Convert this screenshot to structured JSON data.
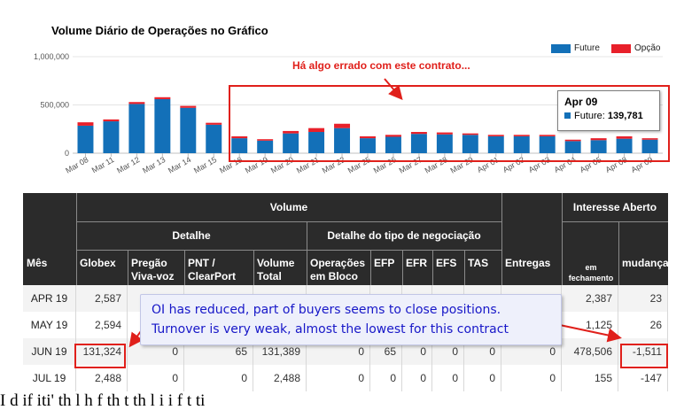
{
  "chart_data": {
    "type": "bar",
    "title": "Volume Diário de Operações no Gráfico",
    "categories": [
      "Mar 08",
      "Mar 11",
      "Mar 12",
      "Mar 13",
      "Mar 14",
      "Mar 15",
      "Mar 18",
      "Mar 19",
      "Mar 20",
      "Mar 21",
      "Mar 22",
      "Mar 25",
      "Mar 26",
      "Mar 27",
      "Mar 28",
      "Mar 29",
      "Apr 01",
      "Apr 02",
      "Apr 03",
      "Apr 04",
      "Apr 05",
      "Apr 08",
      "Apr 09"
    ],
    "series": [
      {
        "name": "Future",
        "color": "#1370b8",
        "values": [
          285000,
          330000,
          510000,
          560000,
          470000,
          295000,
          155000,
          130000,
          205000,
          220000,
          260000,
          155000,
          170000,
          200000,
          195000,
          190000,
          175000,
          175000,
          175000,
          125000,
          135000,
          150000,
          139781
        ]
      },
      {
        "name": "Opção",
        "color": "#e8202a",
        "values": [
          35000,
          20000,
          20000,
          20000,
          20000,
          20000,
          20000,
          15000,
          25000,
          40000,
          45000,
          20000,
          20000,
          20000,
          20000,
          15000,
          15000,
          15000,
          15000,
          15000,
          20000,
          25000,
          15000
        ]
      }
    ],
    "yticks": [
      "0",
      "500,000",
      "1,000,000"
    ],
    "ylim": [
      0,
      1000000
    ],
    "legend": "top-right",
    "annotation": "Há algo errado com este contrato...",
    "tooltip": {
      "date": "Apr 09",
      "series": "Future",
      "value": "139,781"
    }
  },
  "table": {
    "volume": "Volume",
    "detalhe": "Detalhe",
    "detalhe_tipo": "Detalhe do tipo de negociação",
    "interesse": "Interesse Aberto",
    "cols": [
      "Mês",
      "Globex",
      "Pregão\nViva-voz",
      "PNT /\nClearPort",
      "Volume\nTotal",
      "Operações\nem Bloco",
      "EFP",
      "EFR",
      "EFS",
      "TAS",
      "Entregas",
      "em\nfechamento",
      "mudança"
    ],
    "rows": [
      [
        "APR 19",
        "2,587",
        "",
        "",
        "",
        "",
        "",
        "",
        "",
        "",
        "",
        "2,387",
        "23"
      ],
      [
        "MAY 19",
        "2,594",
        "",
        "",
        "",
        "",
        "",
        "",
        "",
        "",
        "",
        "1,125",
        "26"
      ],
      [
        "JUN 19",
        "131,324",
        "0",
        "65",
        "131,389",
        "0",
        "65",
        "0",
        "0",
        "0",
        "0",
        "478,506",
        "-1,511"
      ],
      [
        "JUL 19",
        "2,488",
        "0",
        "0",
        "2,488",
        "0",
        "0",
        "0",
        "0",
        "0",
        "0",
        "155",
        "-147"
      ]
    ]
  },
  "note": {
    "line1": "OI has reduced, part of buyers seems to close positions.",
    "line2": "Turnover is very weak, almost the lowest for this contract"
  },
  "footer_text": "I                                 d     if    iti'          th     l     h     f          th            t            th     l     i     i     f  t     ti"
}
